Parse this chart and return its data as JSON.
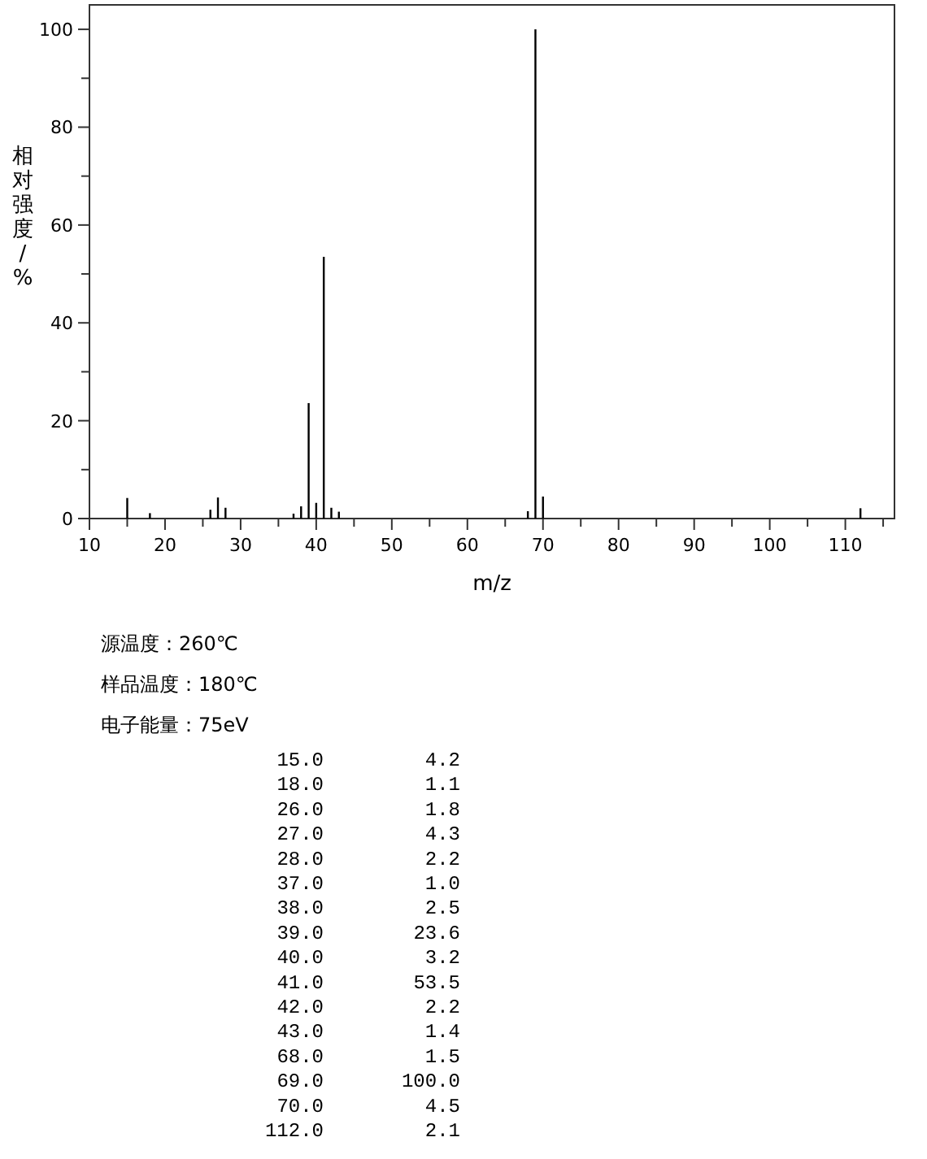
{
  "chart_data": {
    "type": "bar",
    "ylabel": "相对强度/%",
    "xlabel": "m/z",
    "x": [
      15,
      18,
      26,
      27,
      28,
      37,
      38,
      39,
      40,
      41,
      42,
      43,
      68,
      69,
      70,
      112
    ],
    "values": [
      4.2,
      1.1,
      1.8,
      4.3,
      2.2,
      1.0,
      2.5,
      23.6,
      3.2,
      53.5,
      2.2,
      1.4,
      1.5,
      100.0,
      4.5,
      2.1
    ],
    "color": "#000000",
    "xlim": [
      10,
      116.5
    ],
    "ylim": [
      0,
      105
    ],
    "xticks": [
      10,
      20,
      30,
      40,
      50,
      60,
      70,
      80,
      90,
      100,
      110,
      {
        "value": 15,
        "label": null
      },
      {
        "value": 25,
        "label": null
      },
      {
        "value": 35,
        "label": null
      },
      {
        "value": 45,
        "label": null
      },
      {
        "value": 55,
        "label": null
      },
      {
        "value": 65,
        "label": null
      },
      {
        "value": 75,
        "label": null
      },
      {
        "value": 85,
        "label": null
      },
      {
        "value": 95,
        "label": null
      },
      {
        "value": 105,
        "label": null
      },
      {
        "value": 115,
        "label": null
      }
    ],
    "yticks": [
      0,
      20,
      40,
      60,
      80,
      100,
      {
        "value": 10,
        "label": null
      },
      {
        "value": 30,
        "label": null
      },
      {
        "value": 50,
        "label": null
      },
      {
        "value": 70,
        "label": null
      },
      {
        "value": 90,
        "label": null
      }
    ],
    "annotations": [
      "源温度：260℃",
      "样品温度：180℃",
      "电子能量：75eV",
      "15.0",
      "4.2",
      "18.0",
      "1.1",
      "26.0",
      "1.8",
      "27.0",
      "4.3",
      "28.0",
      "2.2",
      "37.0",
      "1.0",
      "38.0",
      "2.5",
      "39.0",
      "23.6",
      "40.0",
      "3.2",
      "41.0",
      "53.5",
      "42.0",
      "2.2",
      "43.0",
      "1.4",
      "68.0",
      "1.5",
      "69.0",
      "100.0",
      "70.0",
      "4.5",
      "112.0",
      "2.1"
    ]
  }
}
